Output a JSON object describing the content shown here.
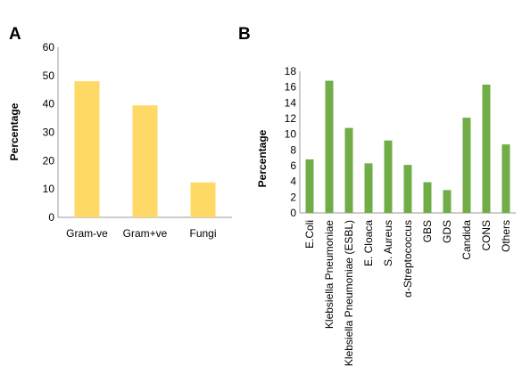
{
  "chart_data": [
    {
      "panel": "A",
      "type": "bar",
      "categories": [
        "Gram-ve",
        "Gram+ve",
        "Fungi"
      ],
      "values": [
        48,
        39.5,
        12.3
      ],
      "ylabel": "Percentage",
      "ylim": [
        0,
        60
      ],
      "yticks": [
        0,
        10,
        20,
        30,
        40,
        50,
        60
      ],
      "color": "#FFD966",
      "grid": false
    },
    {
      "panel": "B",
      "type": "bar",
      "categories": [
        "E.Coli",
        "Klebsiella Pneumoniae",
        "Klebsiella Pneumoniae (ESBL)",
        "E. Cloaca",
        "S. Aureus",
        "α-Streptococcus",
        "GBS",
        "GDS",
        "Candida",
        "CONS",
        "Others"
      ],
      "values": [
        6.8,
        16.8,
        10.8,
        6.3,
        9.2,
        6.1,
        3.9,
        2.9,
        12.1,
        16.3,
        8.7
      ],
      "ylabel": "Percentage",
      "ylim": [
        0,
        18
      ],
      "yticks": [
        0,
        2,
        4,
        6,
        8,
        10,
        12,
        14,
        16,
        18
      ],
      "color": "#70AD47",
      "grid": false
    }
  ]
}
